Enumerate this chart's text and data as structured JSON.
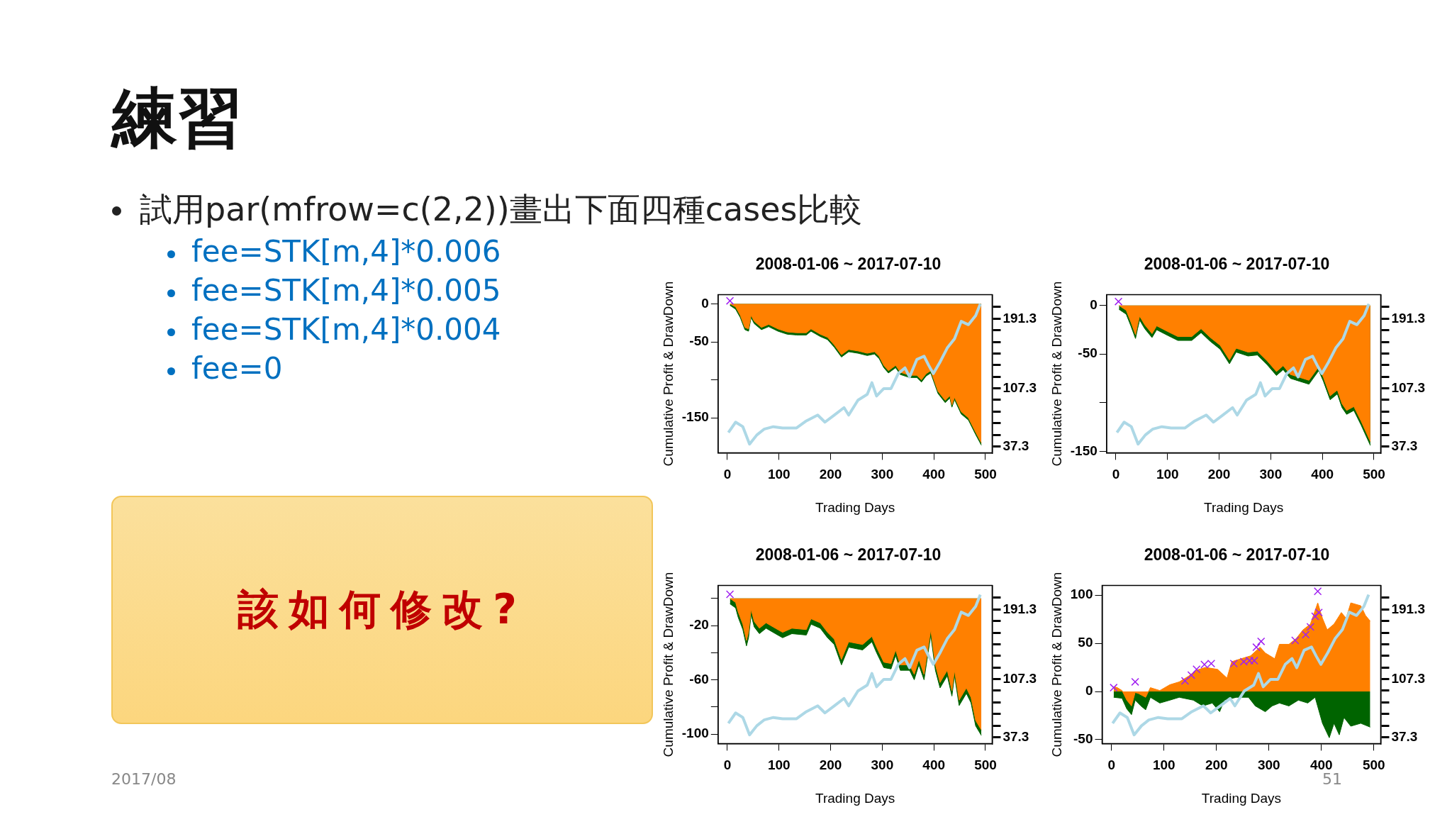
{
  "chart_data": [
    {
      "type": "other",
      "title": "練習",
      "annotations": [
        "試用par(mfrow=c(2,2))畫出下面四種cases比較",
        "fee=STK[m,4]*0.006",
        "fee=STK[m,4]*0.005",
        "fee=STK[m,4]*0.004",
        "fee=0",
        "該如何修改?",
        "2017/08",
        "51"
      ]
    },
    {
      "type": "area",
      "title": "2008-01-06 ~ 2017-07-10",
      "xlabel": "Trading Days",
      "ylabel": "Cumulative Profit & DrawDown",
      "xlim": [
        -18,
        513
      ],
      "xticks": [
        0,
        100,
        200,
        300,
        400,
        500
      ],
      "ylim": [
        -196,
        12
      ],
      "yticks": [
        0,
        -50,
        {
          "value": -100,
          "label": null
        },
        -150
      ],
      "y2lim": [
        29.6,
        220.1
      ],
      "y2ticks": [
        {
          "value": 37.3,
          "label": "37.3"
        },
        {
          "value": 51.3,
          "label": null
        },
        {
          "value": 65.3,
          "label": null
        },
        {
          "value": 79.3,
          "label": null
        },
        {
          "value": 93.3,
          "label": null
        },
        {
          "value": 107.3,
          "label": "107.3"
        },
        {
          "value": 121.3,
          "label": null
        },
        {
          "value": 135.3,
          "label": null
        },
        {
          "value": 149.3,
          "label": null
        },
        {
          "value": 163.3,
          "label": null
        },
        {
          "value": 177.3,
          "label": null
        },
        {
          "value": 191.3,
          "label": "191.3"
        },
        {
          "value": 205.3,
          "label": null
        }
      ],
      "grid": false,
      "legend": false,
      "series": [
        {
          "type": "area",
          "color": "#006400",
          "x": [
            5,
            16,
            25,
            34,
            41,
            46,
            52,
            66,
            80,
            98,
            116,
            134,
            153,
            162,
            180,
            194,
            207,
            221,
            235,
            253,
            271,
            285,
            294,
            303,
            312,
            326,
            335,
            353,
            367,
            376,
            385,
            394,
            408,
            422,
            431,
            435,
            440,
            453,
            467,
            481,
            492
          ],
          "values": [
            -2,
            -7,
            -18,
            -34,
            -36,
            -18,
            -26,
            -34,
            -30,
            -36,
            -40,
            -41,
            -41,
            -36,
            -43,
            -47,
            -57,
            -70,
            -63,
            -65,
            -68,
            -66,
            -72,
            -84,
            -91,
            -84,
            -93,
            -97,
            -97,
            -103,
            -95,
            -91,
            -118,
            -130,
            -124,
            -136,
            -126,
            -145,
            -153,
            -172,
            -186
          ]
        },
        {
          "type": "area",
          "color": "#ff8000",
          "x": [
            5,
            16,
            25,
            34,
            41,
            46,
            52,
            66,
            80,
            98,
            116,
            134,
            153,
            162,
            180,
            194,
            207,
            221,
            235,
            253,
            271,
            285,
            294,
            303,
            312,
            326,
            335,
            353,
            367,
            376,
            385,
            394,
            408,
            422,
            431,
            435,
            440,
            453,
            467,
            481,
            492
          ],
          "values": [
            0,
            -4,
            -15,
            -31,
            -33,
            -15,
            -23,
            -31,
            -27,
            -33,
            -37,
            -38,
            -38,
            -33,
            -40,
            -44,
            -54,
            -67,
            -60,
            -62,
            -65,
            -63,
            -69,
            -81,
            -88,
            -81,
            -90,
            -94,
            -94,
            -100,
            -92,
            -88,
            -115,
            -127,
            -121,
            -133,
            -123,
            -142,
            -150,
            -169,
            -183
          ]
        },
        {
          "type": "line",
          "axis": "y2",
          "color": "#add8e6",
          "x": [
            2,
            16,
            30,
            43,
            57,
            71,
            89,
            107,
            134,
            153,
            175,
            189,
            207,
            226,
            235,
            253,
            271,
            280,
            289,
            303,
            317,
            331,
            344,
            353,
            367,
            381,
            390,
            399,
            412,
            426,
            440,
            453,
            467,
            481,
            490
          ],
          "values": [
            54,
            66.5,
            61,
            40,
            51,
            58,
            61,
            59.5,
            59.5,
            68,
            75,
            66.5,
            75,
            84,
            75,
            93,
            100,
            114,
            98,
            107,
            107,
            125,
            132,
            121,
            142,
            146,
            135,
            125,
            139,
            156,
            167,
            188,
            184,
            195,
            209
          ]
        },
        {
          "type": "scatter",
          "marker": "cross",
          "color": "#a020f0",
          "x": [
            5
          ],
          "values": [
            4
          ]
        }
      ]
    },
    {
      "type": "area",
      "title": "2008-01-06 ~ 2017-07-10",
      "xlabel": "Trading Days",
      "ylabel": "Cumulative Profit & DrawDown",
      "xlim": [
        -18,
        513
      ],
      "xticks": [
        0,
        100,
        200,
        300,
        400,
        500
      ],
      "ylim": [
        -151.5,
        11
      ],
      "yticks": [
        0,
        -50,
        {
          "value": -100,
          "label": null
        },
        -150
      ],
      "y2lim": [
        29.6,
        220.1
      ],
      "y2ticks": [
        {
          "value": 37.3,
          "label": "37.3"
        },
        {
          "value": 51.3,
          "label": null
        },
        {
          "value": 65.3,
          "label": null
        },
        {
          "value": 79.3,
          "label": null
        },
        {
          "value": 93.3,
          "label": null
        },
        {
          "value": 107.3,
          "label": "107.3"
        },
        {
          "value": 121.3,
          "label": null
        },
        {
          "value": 135.3,
          "label": null
        },
        {
          "value": 149.3,
          "label": null
        },
        {
          "value": 163.3,
          "label": null
        },
        {
          "value": 177.3,
          "label": null
        },
        {
          "value": 191.3,
          "label": "191.3"
        },
        {
          "value": 205.3,
          "label": null
        }
      ],
      "grid": false,
      "legend": false,
      "series": [
        {
          "type": "area",
          "color": "#006400",
          "x": [
            6,
            20,
            29,
            38,
            42,
            46,
            56,
            70,
            79,
            101,
            120,
            147,
            165,
            183,
            202,
            220,
            233,
            256,
            274,
            293,
            311,
            324,
            338,
            356,
            374,
            393,
            402,
            415,
            429,
            438,
            447,
            461,
            475,
            493
          ],
          "values": [
            -4,
            -9,
            -21,
            -34,
            -24,
            -15,
            -24,
            -33,
            -25,
            -31,
            -36,
            -36,
            -28,
            -37,
            -45,
            -60,
            -48,
            -52,
            -51,
            -61,
            -72,
            -66,
            -75,
            -78,
            -81,
            -67,
            -78,
            -97,
            -91,
            -105,
            -112,
            -108,
            -123,
            -144
          ]
        },
        {
          "type": "area",
          "color": "#ff8000",
          "x": [
            6,
            20,
            29,
            38,
            42,
            46,
            56,
            70,
            79,
            101,
            120,
            147,
            165,
            183,
            202,
            220,
            233,
            256,
            274,
            293,
            311,
            324,
            338,
            356,
            374,
            393,
            402,
            415,
            429,
            438,
            447,
            461,
            475,
            493
          ],
          "values": [
            0,
            -5,
            -17,
            -30,
            -20,
            -11,
            -20,
            -29,
            -21,
            -27,
            -32,
            -32,
            -24,
            -33,
            -41,
            -56,
            -44,
            -48,
            -47,
            -57,
            -68,
            -62,
            -71,
            -74,
            -77,
            -63,
            -74,
            -93,
            -87,
            -101,
            -108,
            -104,
            -119,
            -140
          ]
        },
        {
          "type": "line",
          "axis": "y2",
          "color": "#add8e6",
          "x": [
            2,
            16,
            30,
            43,
            57,
            71,
            89,
            107,
            134,
            153,
            175,
            189,
            207,
            226,
            235,
            253,
            271,
            280,
            289,
            303,
            317,
            331,
            344,
            353,
            367,
            381,
            390,
            399,
            412,
            426,
            440,
            453,
            467,
            481,
            490
          ],
          "values": [
            54,
            66.5,
            61,
            40,
            51,
            58,
            61,
            59.5,
            59.5,
            68,
            75,
            66.5,
            75,
            84,
            75,
            93,
            100,
            114,
            98,
            107,
            107,
            125,
            132,
            121,
            142,
            146,
            135,
            125,
            139,
            156,
            167,
            188,
            184,
            195,
            209
          ]
        },
        {
          "type": "scatter",
          "marker": "cross",
          "color": "#a020f0",
          "x": [
            5
          ],
          "values": [
            4
          ]
        }
      ]
    },
    {
      "type": "area",
      "title": "2008-01-06 ~ 2017-07-10",
      "xlabel": "Trading Days",
      "ylabel": "Cumulative Profit & DrawDown",
      "xlim": [
        -18,
        513
      ],
      "xticks": [
        0,
        100,
        200,
        300,
        400,
        500
      ],
      "ylim": [
        -107,
        9.5
      ],
      "yticks": [
        {
          "value": 0,
          "label": null
        },
        -20,
        {
          "value": -40,
          "label": null
        },
        -60,
        {
          "value": -80,
          "label": null
        },
        -100
      ],
      "y2lim": [
        29.6,
        220.1
      ],
      "y2ticks": [
        {
          "value": 37.3,
          "label": "37.3"
        },
        {
          "value": 51.3,
          "label": null
        },
        {
          "value": 65.3,
          "label": null
        },
        {
          "value": 79.3,
          "label": null
        },
        {
          "value": 93.3,
          "label": null
        },
        {
          "value": 107.3,
          "label": "107.3"
        },
        {
          "value": 121.3,
          "label": null
        },
        {
          "value": 135.3,
          "label": null
        },
        {
          "value": 149.3,
          "label": null
        },
        {
          "value": 163.3,
          "label": null
        },
        {
          "value": 177.3,
          "label": null
        },
        {
          "value": 191.3,
          "label": "191.3"
        },
        {
          "value": 205.3,
          "label": null
        }
      ],
      "grid": false,
      "legend": false,
      "series": [
        {
          "type": "area",
          "color": "#006400",
          "x": [
            5,
            16,
            21,
            30,
            37,
            41,
            46,
            52,
            62,
            75,
            93,
            107,
            125,
            153,
            162,
            180,
            194,
            207,
            221,
            235,
            262,
            280,
            289,
            303,
            317,
            326,
            335,
            353,
            362,
            371,
            381,
            394,
            403,
            412,
            426,
            435,
            440,
            449,
            463,
            472,
            481,
            492
          ],
          "values": [
            -4,
            -7,
            -14,
            -23,
            -35,
            -29,
            -12,
            -21,
            -26,
            -22,
            -26,
            -29,
            -26,
            -27,
            -19,
            -22,
            -29,
            -34,
            -49,
            -36,
            -38,
            -32,
            -40,
            -51,
            -52,
            -42,
            -53,
            -53,
            -60,
            -49,
            -60,
            -27,
            -53,
            -66,
            -57,
            -72,
            -57,
            -79,
            -70,
            -77,
            -94,
            -101
          ]
        },
        {
          "type": "area",
          "color": "#ff8000",
          "x": [
            5,
            16,
            21,
            30,
            37,
            41,
            46,
            52,
            62,
            75,
            93,
            107,
            125,
            153,
            162,
            180,
            194,
            207,
            221,
            235,
            262,
            280,
            289,
            303,
            317,
            326,
            335,
            353,
            362,
            371,
            381,
            394,
            403,
            412,
            426,
            435,
            440,
            449,
            463,
            472,
            481,
            492
          ],
          "values": [
            0,
            -3,
            -10,
            -19,
            -31,
            -25,
            -8,
            -17,
            -22,
            -18,
            -22,
            -25,
            -22,
            -23,
            -15,
            -18,
            -25,
            -30,
            -45,
            -32,
            -34,
            -28,
            -36,
            -47,
            -48,
            -38,
            -49,
            -49,
            -56,
            -45,
            -56,
            -23,
            -49,
            -62,
            -53,
            -68,
            -53,
            -75,
            -66,
            -73,
            -90,
            -97
          ]
        },
        {
          "type": "line",
          "axis": "y2",
          "color": "#add8e6",
          "x": [
            2,
            16,
            30,
            43,
            57,
            71,
            89,
            107,
            134,
            153,
            175,
            189,
            207,
            226,
            235,
            253,
            271,
            280,
            289,
            303,
            317,
            331,
            344,
            353,
            367,
            381,
            390,
            399,
            412,
            426,
            440,
            453,
            467,
            481,
            490
          ],
          "values": [
            54,
            66.5,
            61,
            40,
            51,
            58,
            61,
            59.5,
            59.5,
            68,
            75,
            66.5,
            75,
            84,
            75,
            93,
            100,
            114,
            98,
            107,
            107,
            125,
            132,
            121,
            142,
            146,
            135,
            125,
            139,
            156,
            167,
            188,
            184,
            195,
            209
          ]
        },
        {
          "type": "scatter",
          "marker": "cross",
          "color": "#a020f0",
          "x": [
            5
          ],
          "values": [
            3
          ]
        }
      ]
    },
    {
      "type": "area",
      "title": "2008-01-06 ~ 2017-07-10",
      "xlabel": "Trading Days",
      "ylabel": "Cumulative Profit & DrawDown",
      "xlim": [
        -18,
        513
      ],
      "xticks": [
        0,
        100,
        200,
        300,
        400,
        500
      ],
      "ylim": [
        -54,
        110
      ],
      "yticks": [
        100,
        50,
        0,
        -50
      ],
      "y2lim": [
        29.6,
        220.1
      ],
      "y2ticks": [
        {
          "value": 37.3,
          "label": "37.3"
        },
        {
          "value": 51.3,
          "label": null
        },
        {
          "value": 65.3,
          "label": null
        },
        {
          "value": 79.3,
          "label": null
        },
        {
          "value": 93.3,
          "label": null
        },
        {
          "value": 107.3,
          "label": "107.3"
        },
        {
          "value": 121.3,
          "label": null
        },
        {
          "value": 135.3,
          "label": null
        },
        {
          "value": 149.3,
          "label": null
        },
        {
          "value": 163.3,
          "label": null
        },
        {
          "value": 177.3,
          "label": null
        },
        {
          "value": 191.3,
          "label": "191.3"
        },
        {
          "value": 205.3,
          "label": null
        }
      ],
      "grid": false,
      "legend": false,
      "series": [
        {
          "type": "area",
          "color": "#006400",
          "x": [
            4,
            20,
            29,
            38,
            45,
            56,
            65,
            74,
            92,
            111,
            129,
            156,
            174,
            192,
            206,
            215,
            238,
            261,
            274,
            293,
            306,
            320,
            338,
            356,
            374,
            388,
            402,
            415,
            424,
            434,
            443,
            456,
            475,
            493
          ],
          "values": [
            -6,
            -7,
            -18,
            -24,
            -9,
            -15,
            -19,
            -6,
            -12,
            -9,
            -6,
            -9,
            -15,
            -12,
            -21,
            -9,
            -6,
            -6,
            -15,
            -21,
            -15,
            -12,
            -15,
            -9,
            -12,
            -6,
            -33,
            -48,
            -33,
            -45,
            -27,
            -36,
            -33,
            -37
          ]
        },
        {
          "type": "area",
          "color": "#ff8000",
          "x": [
            4,
            11,
            20,
            29,
            38,
            45,
            51,
            65,
            74,
            92,
            111,
            129,
            147,
            161,
            179,
            202,
            220,
            229,
            247,
            265,
            283,
            293,
            311,
            320,
            338,
            352,
            365,
            379,
            393,
            402,
            411,
            424,
            438,
            447,
            456,
            475,
            484,
            493
          ],
          "values": [
            5,
            4,
            1,
            -9,
            -15,
            -1,
            -2,
            -6,
            4,
            1,
            7,
            10,
            16,
            22,
            25,
            23,
            14,
            31,
            34,
            37,
            46,
            40,
            34,
            49,
            49,
            55,
            64,
            70,
            92,
            76,
            64,
            70,
            82,
            76,
            92,
            89,
            79,
            73
          ]
        },
        {
          "type": "line",
          "axis": "y2",
          "color": "#add8e6",
          "x": [
            2,
            16,
            30,
            43,
            57,
            71,
            89,
            107,
            134,
            153,
            175,
            189,
            207,
            226,
            235,
            253,
            271,
            280,
            289,
            303,
            317,
            331,
            344,
            353,
            367,
            381,
            390,
            399,
            412,
            426,
            440,
            453,
            467,
            481,
            490
          ],
          "values": [
            54,
            66.5,
            61,
            40,
            51,
            58,
            61,
            59.5,
            59.5,
            68,
            75,
            66.5,
            75,
            84,
            75,
            93,
            100,
            114,
            98,
            107,
            107,
            125,
            132,
            121,
            142,
            146,
            135,
            125,
            139,
            156,
            167,
            188,
            184,
            195,
            209
          ]
        },
        {
          "type": "scatter",
          "marker": "cross",
          "color": "#a020f0",
          "x": [
            4,
            45,
            140,
            152,
            162,
            177,
            190,
            233,
            252,
            263,
            272,
            276,
            285,
            350,
            370,
            379,
            388,
            393,
            395
          ],
          "values": [
            4,
            10,
            11,
            17,
            23,
            28,
            29,
            29,
            31,
            32,
            32,
            46,
            52,
            53,
            59,
            67,
            78,
            104,
            82
          ]
        }
      ]
    }
  ]
}
